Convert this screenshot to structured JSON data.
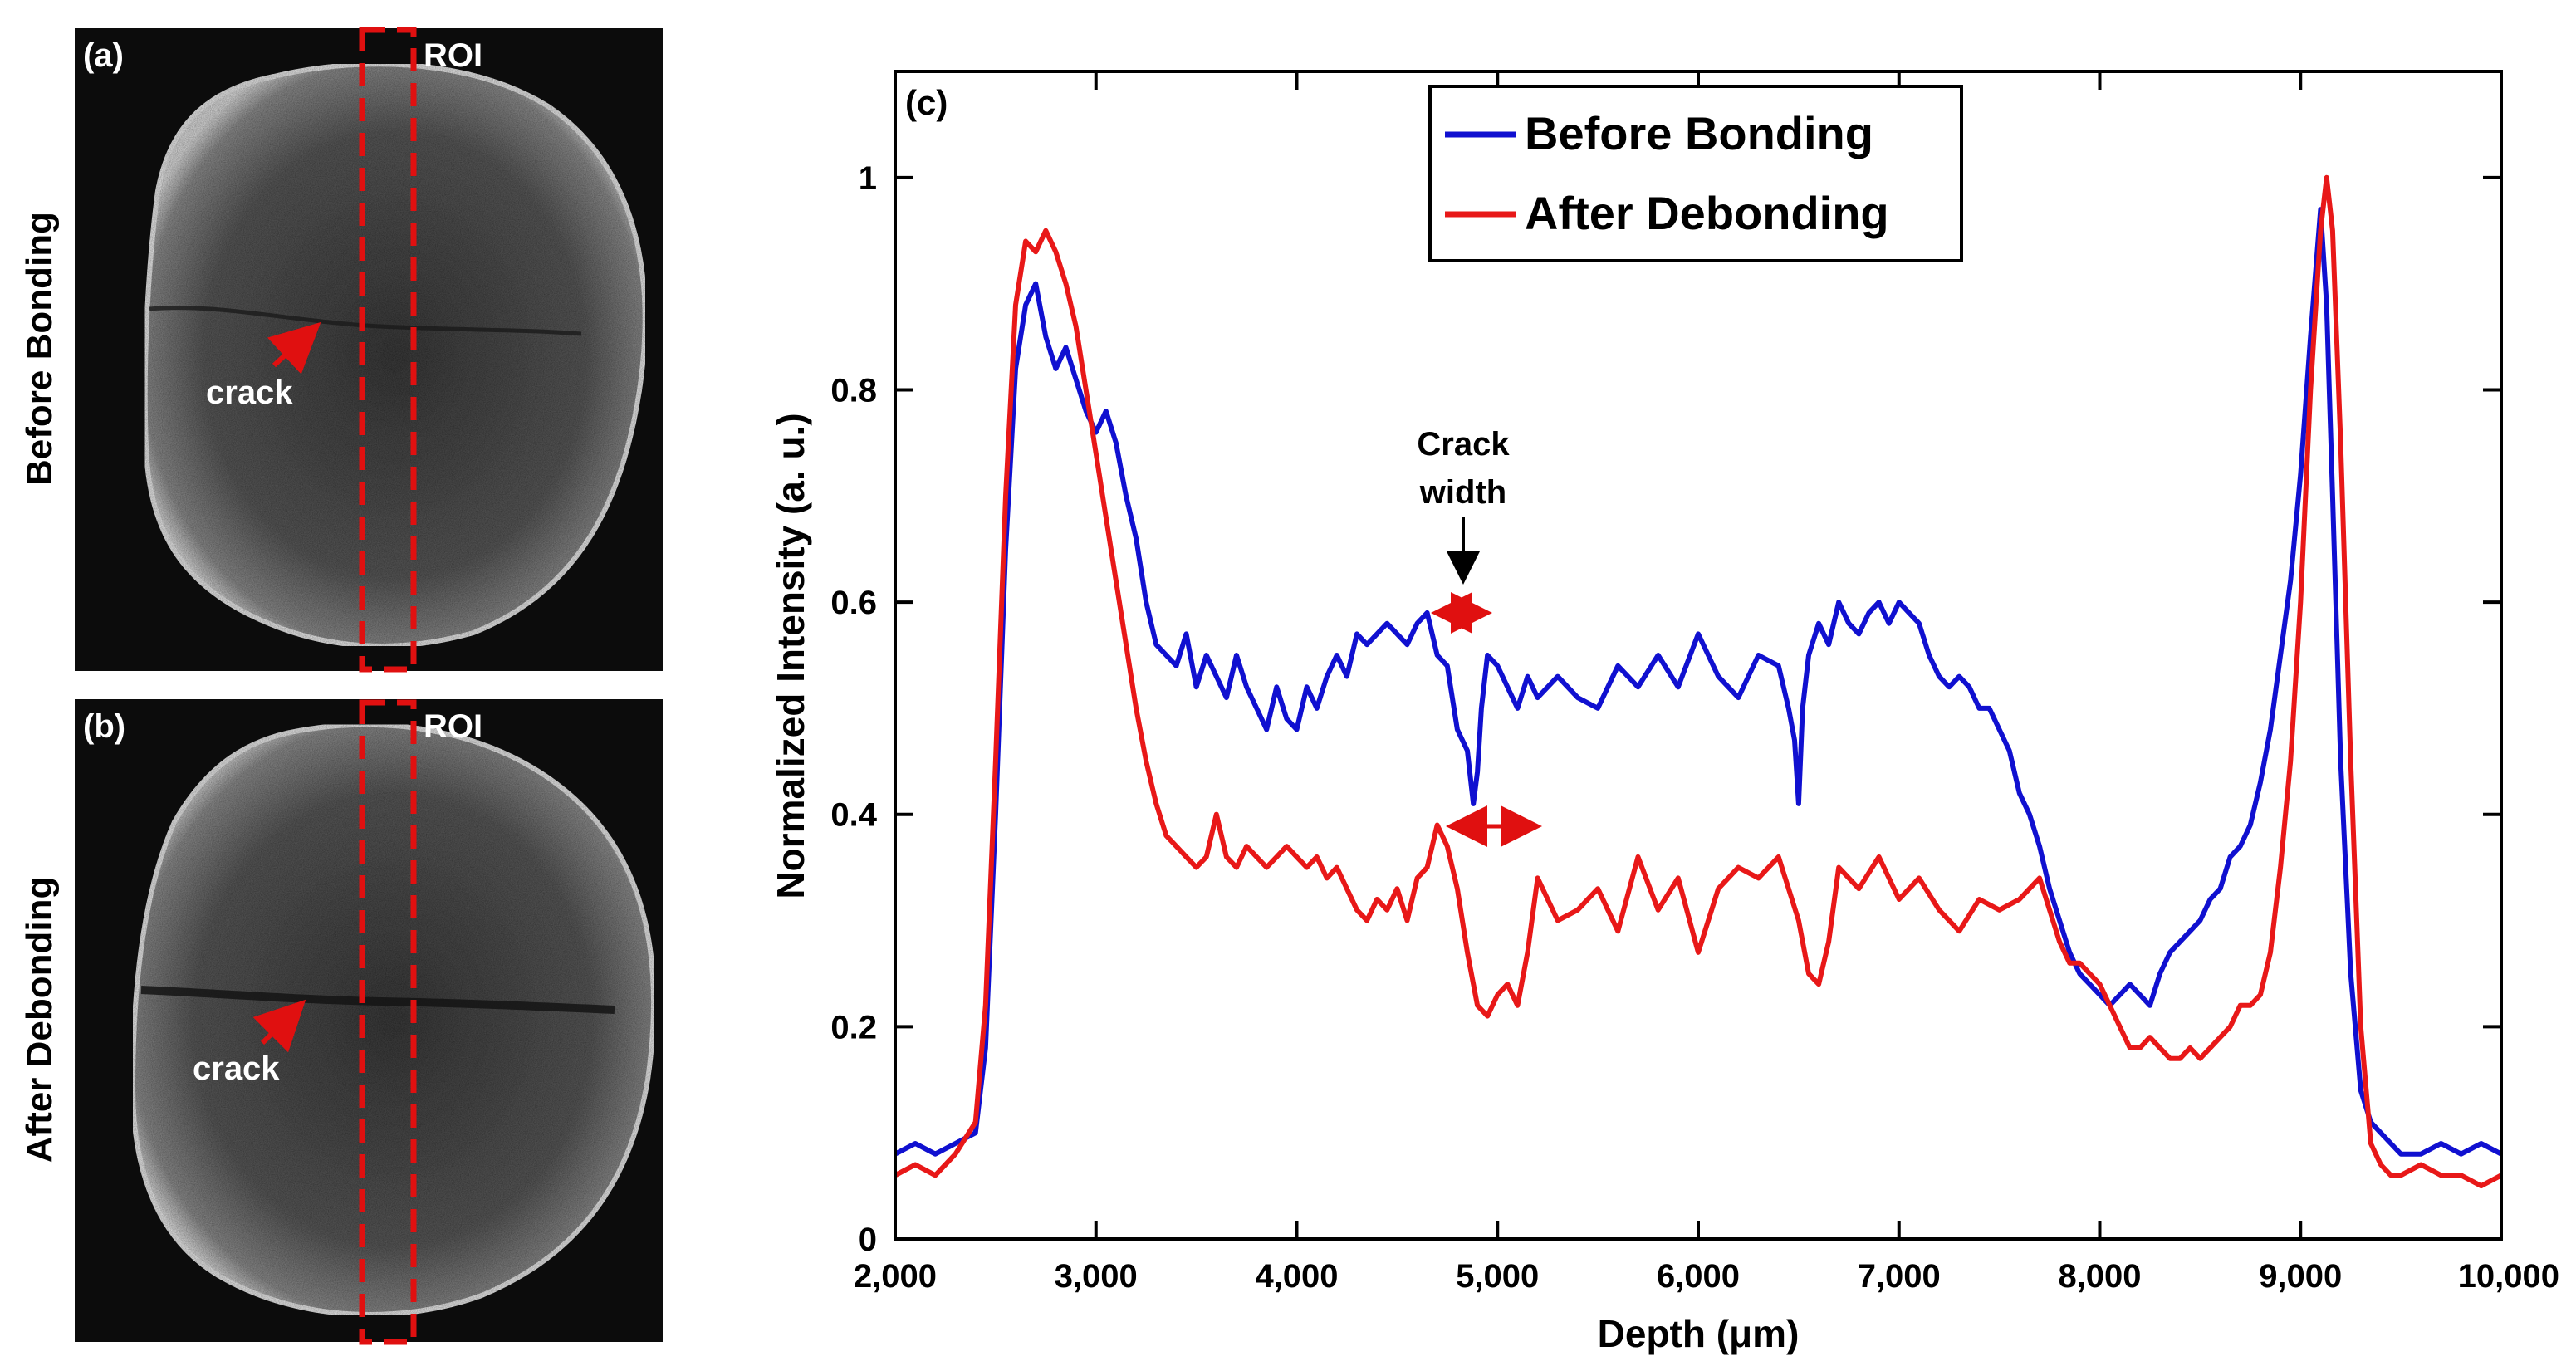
{
  "panels": {
    "a": {
      "label": "(a)",
      "side_label": "Before Bonding",
      "roi_label": "ROI",
      "crack_label": "crack"
    },
    "b": {
      "label": "(b)",
      "side_label": "After Debonding",
      "roi_label": "ROI",
      "crack_label": "crack"
    }
  },
  "colors": {
    "before": "#1010d0",
    "after": "#e81818",
    "roi": "#e01010",
    "axis": "#000000"
  },
  "chart_data": {
    "type": "line",
    "panel_label": "(c)",
    "xlabel": "Depth (μm)",
    "ylabel": "Normalized Intensity (a. u.)",
    "xlim": [
      2000,
      10000
    ],
    "ylim": [
      0,
      1.1
    ],
    "xticks": [
      2000,
      3000,
      4000,
      5000,
      6000,
      7000,
      8000,
      9000,
      10000
    ],
    "xtick_labels": [
      "2,000",
      "3,000",
      "4,000",
      "5,000",
      "6,000",
      "7,000",
      "8,000",
      "9,000",
      "10,000"
    ],
    "yticks": [
      0,
      0.2,
      0.4,
      0.6,
      0.8,
      1
    ],
    "ytick_labels": [
      "0",
      "0.2",
      "0.4",
      "0.6",
      "0.8",
      "1"
    ],
    "legend_position": "top-center",
    "annotation": {
      "line1": "Crack",
      "line2": "width"
    },
    "series": [
      {
        "name": "Before Bonding",
        "x": [
          2000,
          2100,
          2200,
          2300,
          2400,
          2450,
          2500,
          2550,
          2600,
          2650,
          2700,
          2750,
          2800,
          2850,
          2900,
          2950,
          3000,
          3050,
          3100,
          3150,
          3200,
          3250,
          3300,
          3350,
          3400,
          3450,
          3500,
          3550,
          3600,
          3650,
          3700,
          3750,
          3800,
          3850,
          3900,
          3950,
          4000,
          4050,
          4100,
          4150,
          4200,
          4250,
          4300,
          4350,
          4400,
          4450,
          4500,
          4550,
          4600,
          4650,
          4700,
          4750,
          4800,
          4850,
          4880,
          4900,
          4920,
          4950,
          5000,
          5050,
          5100,
          5150,
          5200,
          5300,
          5400,
          5500,
          5600,
          5700,
          5800,
          5900,
          6000,
          6100,
          6200,
          6300,
          6400,
          6450,
          6480,
          6500,
          6520,
          6550,
          6600,
          6650,
          6700,
          6750,
          6800,
          6850,
          6900,
          6950,
          7000,
          7050,
          7100,
          7150,
          7200,
          7250,
          7300,
          7350,
          7400,
          7450,
          7500,
          7550,
          7600,
          7650,
          7700,
          7750,
          7800,
          7850,
          7900,
          7950,
          8000,
          8050,
          8100,
          8150,
          8200,
          8250,
          8300,
          8350,
          8400,
          8450,
          8500,
          8550,
          8600,
          8650,
          8700,
          8750,
          8800,
          8850,
          8900,
          8950,
          9000,
          9050,
          9100,
          9130,
          9160,
          9200,
          9250,
          9300,
          9350,
          9400,
          9450,
          9500,
          9600,
          9700,
          9800,
          9900,
          10000
        ],
        "values": [
          0.08,
          0.09,
          0.08,
          0.09,
          0.1,
          0.18,
          0.4,
          0.65,
          0.82,
          0.88,
          0.9,
          0.85,
          0.82,
          0.84,
          0.81,
          0.78,
          0.76,
          0.78,
          0.75,
          0.7,
          0.66,
          0.6,
          0.56,
          0.55,
          0.54,
          0.57,
          0.52,
          0.55,
          0.53,
          0.51,
          0.55,
          0.52,
          0.5,
          0.48,
          0.52,
          0.49,
          0.48,
          0.52,
          0.5,
          0.53,
          0.55,
          0.53,
          0.57,
          0.56,
          0.57,
          0.58,
          0.57,
          0.56,
          0.58,
          0.59,
          0.55,
          0.54,
          0.48,
          0.46,
          0.41,
          0.44,
          0.5,
          0.55,
          0.54,
          0.52,
          0.5,
          0.53,
          0.51,
          0.53,
          0.51,
          0.5,
          0.54,
          0.52,
          0.55,
          0.52,
          0.57,
          0.53,
          0.51,
          0.55,
          0.54,
          0.5,
          0.47,
          0.41,
          0.5,
          0.55,
          0.58,
          0.56,
          0.6,
          0.58,
          0.57,
          0.59,
          0.6,
          0.58,
          0.6,
          0.59,
          0.58,
          0.55,
          0.53,
          0.52,
          0.53,
          0.52,
          0.5,
          0.5,
          0.48,
          0.46,
          0.42,
          0.4,
          0.37,
          0.33,
          0.3,
          0.27,
          0.25,
          0.24,
          0.23,
          0.22,
          0.23,
          0.24,
          0.23,
          0.22,
          0.25,
          0.27,
          0.28,
          0.29,
          0.3,
          0.32,
          0.33,
          0.36,
          0.37,
          0.39,
          0.43,
          0.48,
          0.55,
          0.62,
          0.72,
          0.85,
          0.97,
          0.88,
          0.7,
          0.45,
          0.25,
          0.14,
          0.11,
          0.1,
          0.09,
          0.08,
          0.08,
          0.09,
          0.08,
          0.09,
          0.08
        ]
      },
      {
        "name": "After Debonding",
        "x": [
          2000,
          2100,
          2200,
          2300,
          2400,
          2450,
          2500,
          2550,
          2600,
          2650,
          2700,
          2750,
          2800,
          2850,
          2900,
          2950,
          3000,
          3050,
          3100,
          3150,
          3200,
          3250,
          3300,
          3350,
          3400,
          3450,
          3500,
          3550,
          3600,
          3650,
          3700,
          3750,
          3800,
          3850,
          3900,
          3950,
          4000,
          4050,
          4100,
          4150,
          4200,
          4250,
          4300,
          4350,
          4400,
          4450,
          4500,
          4550,
          4600,
          4650,
          4700,
          4750,
          4800,
          4850,
          4900,
          4950,
          5000,
          5050,
          5100,
          5150,
          5200,
          5300,
          5400,
          5500,
          5600,
          5700,
          5800,
          5900,
          6000,
          6100,
          6200,
          6300,
          6400,
          6500,
          6550,
          6600,
          6650,
          6700,
          6800,
          6900,
          7000,
          7100,
          7200,
          7300,
          7400,
          7500,
          7600,
          7650,
          7700,
          7750,
          7800,
          7850,
          7900,
          7950,
          8000,
          8050,
          8100,
          8150,
          8200,
          8250,
          8300,
          8350,
          8400,
          8450,
          8500,
          8550,
          8600,
          8650,
          8700,
          8750,
          8800,
          8850,
          8900,
          8950,
          9000,
          9050,
          9100,
          9130,
          9160,
          9200,
          9250,
          9300,
          9350,
          9400,
          9450,
          9500,
          9600,
          9700,
          9800,
          9900,
          10000
        ],
        "values": [
          0.06,
          0.07,
          0.06,
          0.08,
          0.11,
          0.22,
          0.45,
          0.7,
          0.88,
          0.94,
          0.93,
          0.95,
          0.93,
          0.9,
          0.86,
          0.8,
          0.74,
          0.68,
          0.62,
          0.56,
          0.5,
          0.45,
          0.41,
          0.38,
          0.37,
          0.36,
          0.35,
          0.36,
          0.4,
          0.36,
          0.35,
          0.37,
          0.36,
          0.35,
          0.36,
          0.37,
          0.36,
          0.35,
          0.36,
          0.34,
          0.35,
          0.33,
          0.31,
          0.3,
          0.32,
          0.31,
          0.33,
          0.3,
          0.34,
          0.35,
          0.39,
          0.37,
          0.33,
          0.27,
          0.22,
          0.21,
          0.23,
          0.24,
          0.22,
          0.27,
          0.34,
          0.3,
          0.31,
          0.33,
          0.29,
          0.36,
          0.31,
          0.34,
          0.27,
          0.33,
          0.35,
          0.34,
          0.36,
          0.3,
          0.25,
          0.24,
          0.28,
          0.35,
          0.33,
          0.36,
          0.32,
          0.34,
          0.31,
          0.29,
          0.32,
          0.31,
          0.32,
          0.33,
          0.34,
          0.31,
          0.28,
          0.26,
          0.26,
          0.25,
          0.24,
          0.22,
          0.2,
          0.18,
          0.18,
          0.19,
          0.18,
          0.17,
          0.17,
          0.18,
          0.17,
          0.18,
          0.19,
          0.2,
          0.22,
          0.22,
          0.23,
          0.27,
          0.35,
          0.45,
          0.6,
          0.8,
          0.95,
          1.0,
          0.95,
          0.75,
          0.45,
          0.2,
          0.09,
          0.07,
          0.06,
          0.06,
          0.07,
          0.06,
          0.06,
          0.05,
          0.06
        ]
      }
    ]
  }
}
